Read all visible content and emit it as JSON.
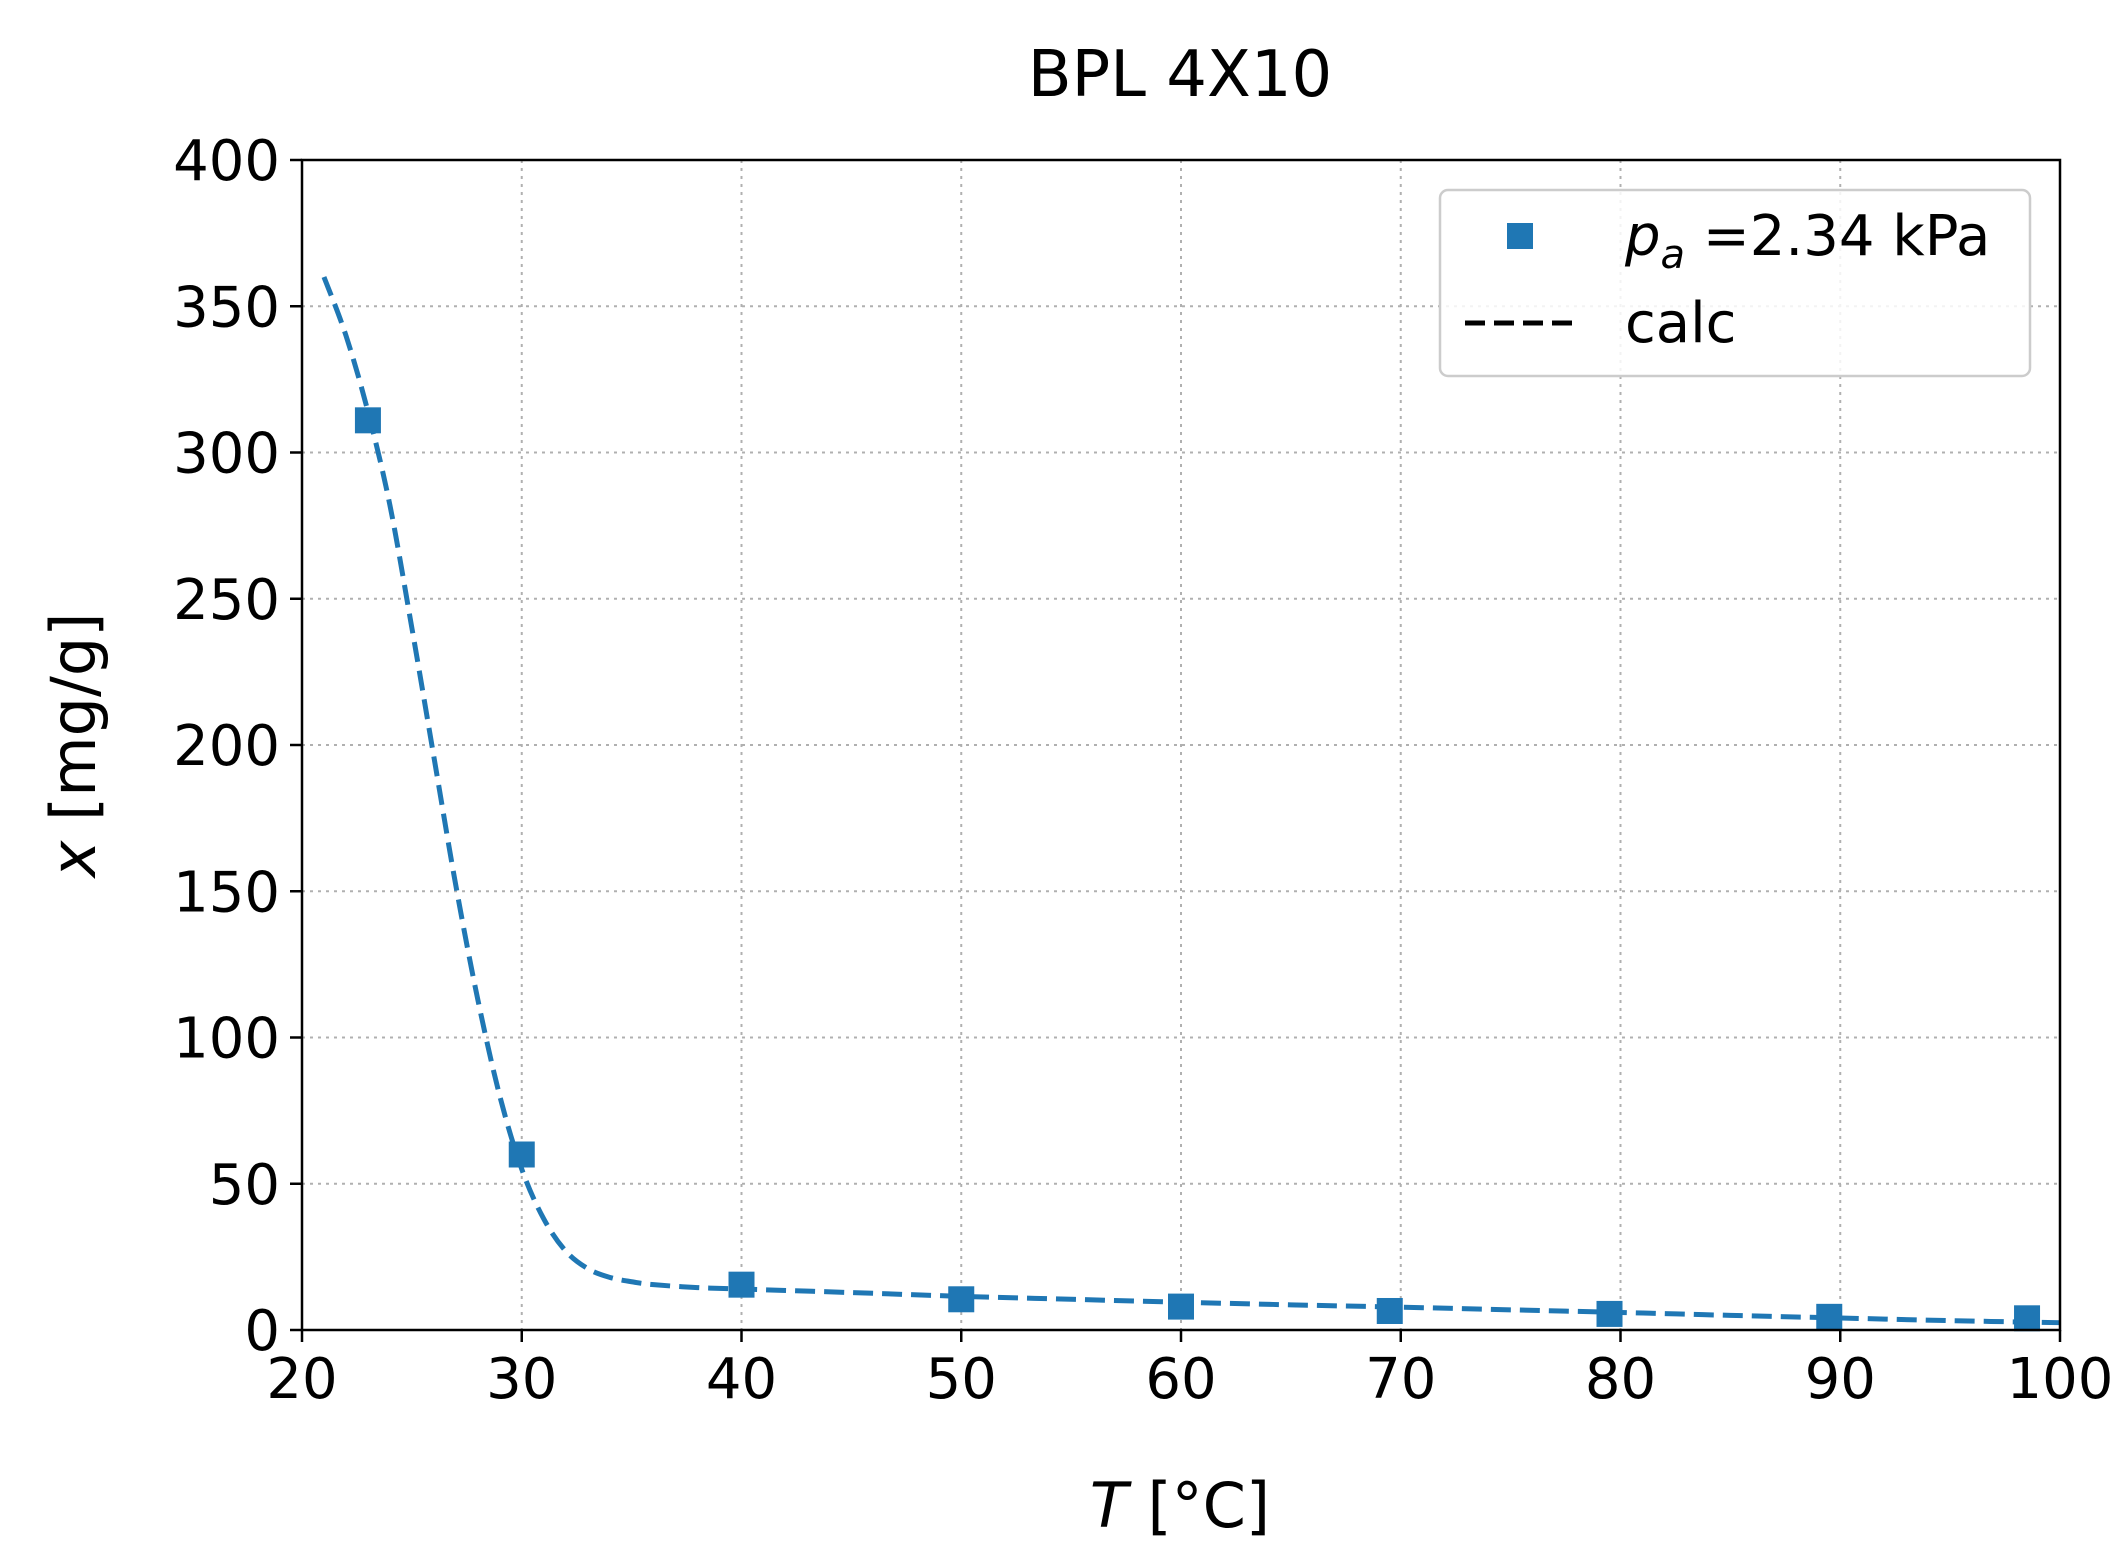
{
  "chart_data": {
    "type": "scatter",
    "title": "BPL 4X10",
    "xlabel": {
      "var": "T",
      "unit": " [°C]"
    },
    "ylabel": {
      "var": "x",
      "unit": " [mg/g]"
    },
    "xlim": [
      20,
      100
    ],
    "ylim": [
      0,
      400
    ],
    "xticks": [
      20,
      30,
      40,
      50,
      60,
      70,
      80,
      90,
      100
    ],
    "yticks": [
      0,
      50,
      100,
      150,
      200,
      250,
      300,
      350,
      400
    ],
    "grid": true,
    "legend_position": "top-right",
    "series": [
      {
        "name": {
          "var": "p",
          "sub": "a",
          "rest": " =2.34 kPa"
        },
        "kind": "markers",
        "marker": "square",
        "color": "#1f77b4",
        "x": [
          23,
          30,
          40,
          50,
          60,
          69.5,
          79.5,
          89.5,
          98.5
        ],
        "y": [
          311,
          60,
          15.5,
          10.5,
          8,
          6.5,
          5.5,
          4.5,
          4
        ]
      },
      {
        "name": "calc",
        "kind": "line",
        "style": "dashed",
        "color": "#1f77b4",
        "legend_color": "#000000",
        "x": [
          21,
          22,
          23,
          24,
          25,
          26,
          27,
          28,
          29,
          30,
          31,
          32,
          33,
          34,
          35,
          36,
          38,
          40,
          45,
          50,
          55,
          60,
          65,
          70,
          75,
          80,
          85,
          90,
          95,
          100
        ],
        "y": [
          360,
          340,
          314,
          282,
          240,
          196,
          152,
          113,
          80,
          55,
          38,
          27,
          21,
          18,
          16.5,
          15.5,
          14.5,
          14,
          12.8,
          11.5,
          10.5,
          9.5,
          8.6,
          7.8,
          6.9,
          6,
          5,
          4.1,
          3.2,
          2.5
        ]
      }
    ]
  }
}
